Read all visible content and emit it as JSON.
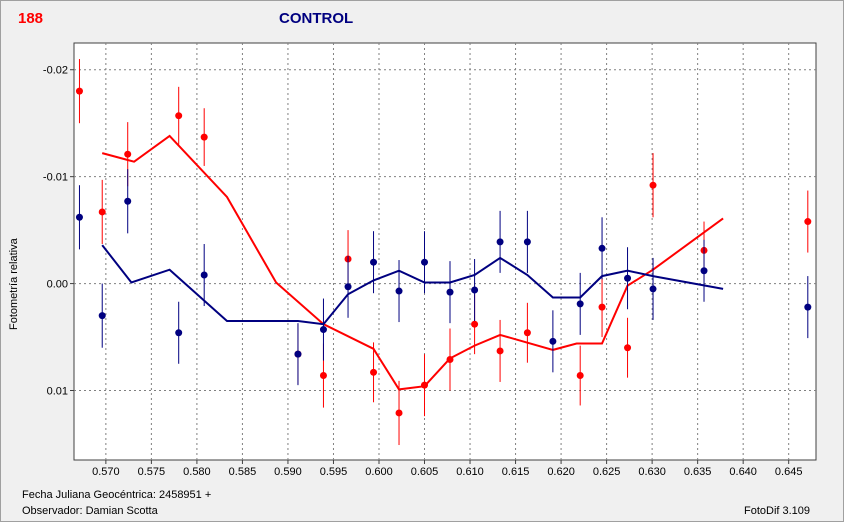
{
  "header": {
    "star_id": "188",
    "title": "CONTROL"
  },
  "footer": {
    "jd_label": "Fecha Juliana Geocéntrica: 2458951 +",
    "observer": "Observador: Damian Scotta",
    "software": "FotoDif 3.109"
  },
  "colors": {
    "red": "#ff0000",
    "blue": "#000080",
    "grid": "#808080"
  },
  "chart_data": {
    "type": "scatter",
    "ylabel": "Fotometría relativa",
    "xlim": [
      0.5665,
      0.648
    ],
    "ylim": [
      0.0165,
      -0.0225
    ],
    "y_inverted": true,
    "grid": true,
    "x_ticks": [
      "0.570",
      "0.575",
      "0.580",
      "0.585",
      "0.590",
      "0.595",
      "0.600",
      "0.605",
      "0.610",
      "0.615",
      "0.620",
      "0.625",
      "0.630",
      "0.635",
      "0.640",
      "0.645"
    ],
    "x_tick_values": [
      0.57,
      0.575,
      0.58,
      0.585,
      0.59,
      0.595,
      0.6,
      0.605,
      0.61,
      0.615,
      0.62,
      0.625,
      0.63,
      0.635,
      0.64,
      0.645
    ],
    "y_ticks": [
      "-0.02",
      "-0.01",
      "0.00",
      "0.01"
    ],
    "y_tick_values": [
      -0.02,
      -0.01,
      0.0,
      0.01
    ],
    "series": [
      {
        "color": "#ff0000",
        "points": [
          {
            "x": 0.5671,
            "y": -0.018,
            "err": 0.003
          },
          {
            "x": 0.5696,
            "y": -0.0067,
            "err": 0.003
          },
          {
            "x": 0.5724,
            "y": -0.0121,
            "err": 0.003
          },
          {
            "x": 0.578,
            "y": -0.0157,
            "err": 0.0027
          },
          {
            "x": 0.5808,
            "y": -0.0137,
            "err": 0.0027
          },
          {
            "x": 0.5911,
            "y": 0.0066,
            "err": 0.0028
          },
          {
            "x": 0.5939,
            "y": 0.0086,
            "err": 0.003
          },
          {
            "x": 0.5966,
            "y": -0.0023,
            "err": 0.0027
          },
          {
            "x": 0.5994,
            "y": 0.0083,
            "err": 0.0028
          },
          {
            "x": 0.6022,
            "y": 0.0121,
            "err": 0.003
          },
          {
            "x": 0.605,
            "y": 0.0095,
            "err": 0.0029
          },
          {
            "x": 0.6078,
            "y": 0.0071,
            "err": 0.0029
          },
          {
            "x": 0.6105,
            "y": 0.0038,
            "err": 0.0028
          },
          {
            "x": 0.6133,
            "y": 0.0063,
            "err": 0.0029
          },
          {
            "x": 0.6163,
            "y": 0.0046,
            "err": 0.0028
          },
          {
            "x": 0.6221,
            "y": 0.0086,
            "err": 0.0028
          },
          {
            "x": 0.6245,
            "y": 0.0022,
            "err": 0.0028
          },
          {
            "x": 0.6273,
            "y": 0.006,
            "err": 0.0028
          },
          {
            "x": 0.6301,
            "y": -0.0092,
            "err": 0.003
          },
          {
            "x": 0.6357,
            "y": -0.0031,
            "err": 0.0027
          },
          {
            "x": 0.6471,
            "y": -0.0058,
            "err": 0.0029
          }
        ],
        "line": [
          {
            "x": 0.5696,
            "y": -0.0122
          },
          {
            "x": 0.5731,
            "y": -0.0114
          },
          {
            "x": 0.577,
            "y": -0.0138
          },
          {
            "x": 0.5833,
            "y": -0.0081
          },
          {
            "x": 0.5887,
            "y": -0.0001
          },
          {
            "x": 0.5939,
            "y": 0.0038
          },
          {
            "x": 0.5994,
            "y": 0.0061
          },
          {
            "x": 0.6022,
            "y": 0.0099
          },
          {
            "x": 0.605,
            "y": 0.0096
          },
          {
            "x": 0.6078,
            "y": 0.007
          },
          {
            "x": 0.6105,
            "y": 0.0058
          },
          {
            "x": 0.6133,
            "y": 0.0048
          },
          {
            "x": 0.6191,
            "y": 0.0062
          },
          {
            "x": 0.6217,
            "y": 0.0056
          },
          {
            "x": 0.6245,
            "y": 0.0056
          },
          {
            "x": 0.6273,
            "y": 0.0002
          },
          {
            "x": 0.6301,
            "y": -0.0013
          },
          {
            "x": 0.6378,
            "y": -0.0061
          }
        ]
      },
      {
        "color": "#000080",
        "points": [
          {
            "x": 0.5671,
            "y": -0.0062,
            "err": 0.003
          },
          {
            "x": 0.5696,
            "y": 0.003,
            "err": 0.003
          },
          {
            "x": 0.5724,
            "y": -0.0077,
            "err": 0.003
          },
          {
            "x": 0.578,
            "y": 0.0046,
            "err": 0.0029
          },
          {
            "x": 0.5808,
            "y": -0.0008,
            "err": 0.0029
          },
          {
            "x": 0.5911,
            "y": 0.0066,
            "err": 0.0029
          },
          {
            "x": 0.5939,
            "y": 0.0043,
            "err": 0.0029
          },
          {
            "x": 0.5966,
            "y": 0.0003,
            "err": 0.0029
          },
          {
            "x": 0.5994,
            "y": -0.002,
            "err": 0.0029
          },
          {
            "x": 0.6022,
            "y": 0.0007,
            "err": 0.0029
          },
          {
            "x": 0.605,
            "y": -0.002,
            "err": 0.0029
          },
          {
            "x": 0.6078,
            "y": 0.0008,
            "err": 0.0029
          },
          {
            "x": 0.6105,
            "y": 0.0006,
            "err": 0.0029
          },
          {
            "x": 0.6133,
            "y": -0.0039,
            "err": 0.0029
          },
          {
            "x": 0.6163,
            "y": -0.0039,
            "err": 0.0029
          },
          {
            "x": 0.6191,
            "y": 0.0054,
            "err": 0.0029
          },
          {
            "x": 0.6221,
            "y": 0.0019,
            "err": 0.0029
          },
          {
            "x": 0.6245,
            "y": -0.0033,
            "err": 0.0029
          },
          {
            "x": 0.6273,
            "y": -0.0005,
            "err": 0.0029
          },
          {
            "x": 0.6301,
            "y": 0.0005,
            "err": 0.0029
          },
          {
            "x": 0.6357,
            "y": -0.0012,
            "err": 0.0029
          },
          {
            "x": 0.6471,
            "y": 0.0022,
            "err": 0.0029
          }
        ],
        "line": [
          {
            "x": 0.5696,
            "y": -0.0036
          },
          {
            "x": 0.5728,
            "y": -0.0001
          },
          {
            "x": 0.577,
            "y": -0.0013
          },
          {
            "x": 0.5833,
            "y": 0.0035
          },
          {
            "x": 0.5911,
            "y": 0.0035
          },
          {
            "x": 0.5939,
            "y": 0.0038
          },
          {
            "x": 0.5966,
            "y": 0.001
          },
          {
            "x": 0.5994,
            "y": -0.0003
          },
          {
            "x": 0.6022,
            "y": -0.0012
          },
          {
            "x": 0.605,
            "y": -0.0001
          },
          {
            "x": 0.6078,
            "y": -0.0001
          },
          {
            "x": 0.6105,
            "y": -0.0008
          },
          {
            "x": 0.6133,
            "y": -0.0024
          },
          {
            "x": 0.6163,
            "y": -0.0008
          },
          {
            "x": 0.6191,
            "y": 0.0013
          },
          {
            "x": 0.6221,
            "y": 0.0013
          },
          {
            "x": 0.6245,
            "y": -0.0007
          },
          {
            "x": 0.6273,
            "y": -0.0012
          },
          {
            "x": 0.6301,
            "y": -0.0007
          },
          {
            "x": 0.6378,
            "y": 0.0005
          }
        ]
      }
    ]
  }
}
